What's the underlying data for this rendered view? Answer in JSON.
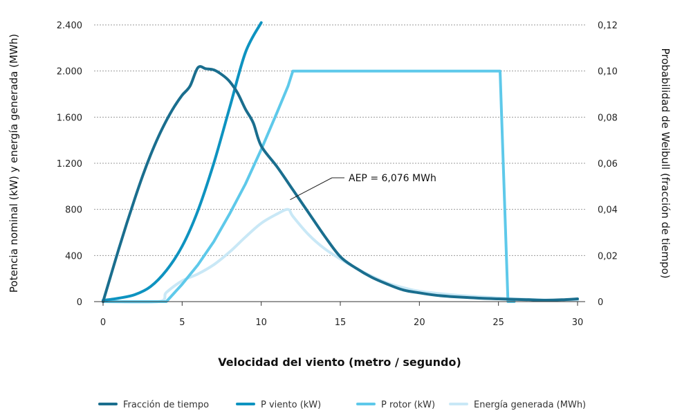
{
  "chart_data": {
    "type": "line",
    "xlabel": "Velocidad del viento (metro / segundo)",
    "ylabel_left": "Potencia nominal (kW) y energía generada (MWh)",
    "ylabel_right": "Probabilidad de Weibull (fracción de tiempo)",
    "xlim": [
      0,
      30
    ],
    "ylim_left": [
      0,
      2400
    ],
    "ylim_right": [
      0,
      0.12
    ],
    "x_ticks": [
      0,
      5,
      10,
      15,
      20,
      25,
      30
    ],
    "x_tick_labels": [
      "0",
      "5",
      "10",
      "15",
      "20",
      "25",
      "30"
    ],
    "y_ticks_left": [
      0,
      400,
      800,
      1200,
      1600,
      2000,
      2400
    ],
    "y_tick_labels_left": [
      "0",
      "400",
      "800",
      "1.200",
      "1.600",
      "2.000",
      "2.400"
    ],
    "y_ticks_right": [
      0,
      0.02,
      0.04,
      0.06,
      0.08,
      0.1,
      0.12
    ],
    "y_tick_labels_right": [
      "0",
      "0,02",
      "0,04",
      "0,06",
      "0,08",
      "0,10",
      "0,12"
    ],
    "grid": true,
    "legend_position": "bottom",
    "annotation": {
      "text": "AEP = 6,076 MWh",
      "x": 12.0,
      "y": 800
    },
    "series": [
      {
        "name": "Fracción de tiempo",
        "axis": "right",
        "color": "#1a6e8e",
        "x": [
          0,
          0.5,
          1,
          1.5,
          2,
          2.5,
          3,
          3.5,
          4,
          4.5,
          5,
          5.5,
          6,
          6.5,
          7,
          7.5,
          8,
          8.5,
          9,
          9.5,
          10,
          11,
          12,
          13,
          14,
          15,
          16,
          17,
          18,
          19,
          20,
          21,
          22,
          23,
          24,
          25,
          26,
          27,
          28,
          29,
          30
        ],
        "y": [
          0,
          0.0115,
          0.023,
          0.034,
          0.0445,
          0.0545,
          0.0635,
          0.0715,
          0.0785,
          0.0845,
          0.0895,
          0.0935,
          0.1015,
          0.101,
          0.1005,
          0.0985,
          0.0955,
          0.0905,
          0.0835,
          0.0775,
          0.0675,
          0.0585,
          0.0485,
          0.0385,
          0.0285,
          0.0195,
          0.0145,
          0.0105,
          0.0075,
          0.005,
          0.0038,
          0.0028,
          0.0022,
          0.0018,
          0.0014,
          0.0012,
          0.001,
          0.0008,
          0.0006,
          0.0008,
          0.0012
        ]
      },
      {
        "name": "P viento (kW)",
        "axis": "left",
        "color": "#0e93c0",
        "x": [
          0,
          0.5,
          1,
          2,
          3,
          4,
          5,
          6,
          7,
          8,
          9,
          10
        ],
        "y": [
          10,
          20,
          30,
          60,
          130,
          270,
          480,
          790,
          1200,
          1680,
          2160,
          2420
        ]
      },
      {
        "name": "P rotor (kW)",
        "axis": "left",
        "color": "#5ec9ea",
        "x": [
          0,
          3.5,
          4,
          5,
          6,
          7,
          8,
          9,
          10,
          11,
          11.7,
          12,
          25.1,
          25.6,
          26
        ],
        "y": [
          0,
          0,
          0,
          150,
          320,
          520,
          760,
          1020,
          1320,
          1640,
          1870,
          2000,
          2000,
          0,
          0
        ]
      },
      {
        "name": "Energía generada (MWh)",
        "axis": "left",
        "color": "#c9e8f6",
        "x": [
          0,
          3.5,
          4,
          5,
          6,
          7,
          8,
          9,
          10,
          11,
          11.7,
          12,
          13,
          14,
          15,
          16,
          17,
          18,
          19,
          20,
          22,
          24,
          26,
          28,
          30
        ],
        "y": [
          0,
          0,
          80,
          180,
          240,
          320,
          430,
          560,
          680,
          760,
          800,
          740,
          580,
          460,
          370,
          290,
          220,
          160,
          120,
          90,
          60,
          40,
          25,
          15,
          10
        ]
      }
    ]
  }
}
